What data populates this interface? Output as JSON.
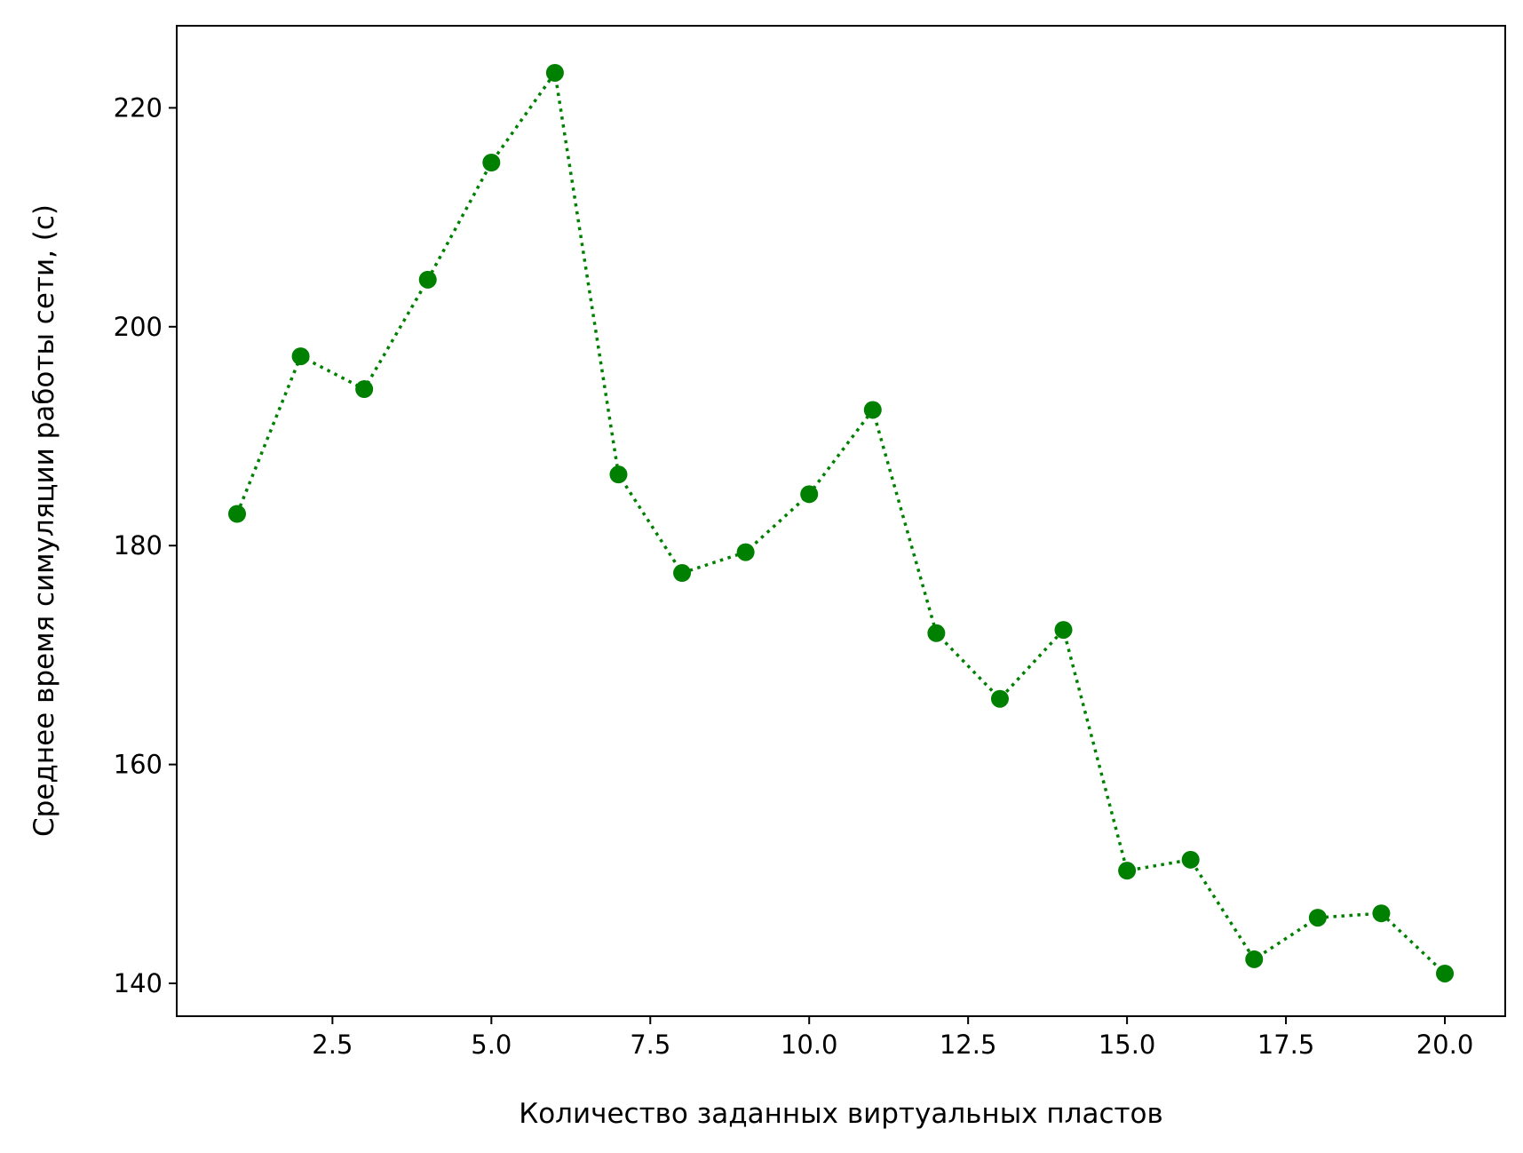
{
  "chart_data": {
    "type": "line",
    "xlabel": "Количество заданных виртуальных пластов",
    "ylabel": "Среднее время симуляции работы сети, (с)",
    "xlim": [
      0.05,
      20.95
    ],
    "ylim": [
      137,
      227.5
    ],
    "xticks": [
      2.5,
      5.0,
      7.5,
      10.0,
      12.5,
      15.0,
      17.5,
      20.0
    ],
    "xtick_labels": [
      "2.5",
      "5.0",
      "7.5",
      "10.0",
      "12.5",
      "15.0",
      "17.5",
      "20.0"
    ],
    "yticks": [
      140,
      160,
      180,
      200,
      220
    ],
    "ytick_labels": [
      "140",
      "160",
      "180",
      "200",
      "220"
    ],
    "grid": false,
    "legend": "none",
    "series": [
      {
        "color": "#008000",
        "line_style": "dotted",
        "marker": "circle",
        "x": [
          1,
          2,
          3,
          4,
          5,
          6,
          7,
          8,
          9,
          10,
          11,
          12,
          13,
          14,
          15,
          16,
          17,
          18,
          19,
          20
        ],
        "values": [
          182.9,
          197.3,
          194.3,
          204.3,
          215.0,
          223.2,
          186.5,
          177.5,
          179.4,
          184.7,
          192.4,
          172.0,
          166.0,
          172.3,
          150.3,
          151.3,
          142.2,
          146.0,
          146.4,
          140.9
        ]
      }
    ]
  }
}
